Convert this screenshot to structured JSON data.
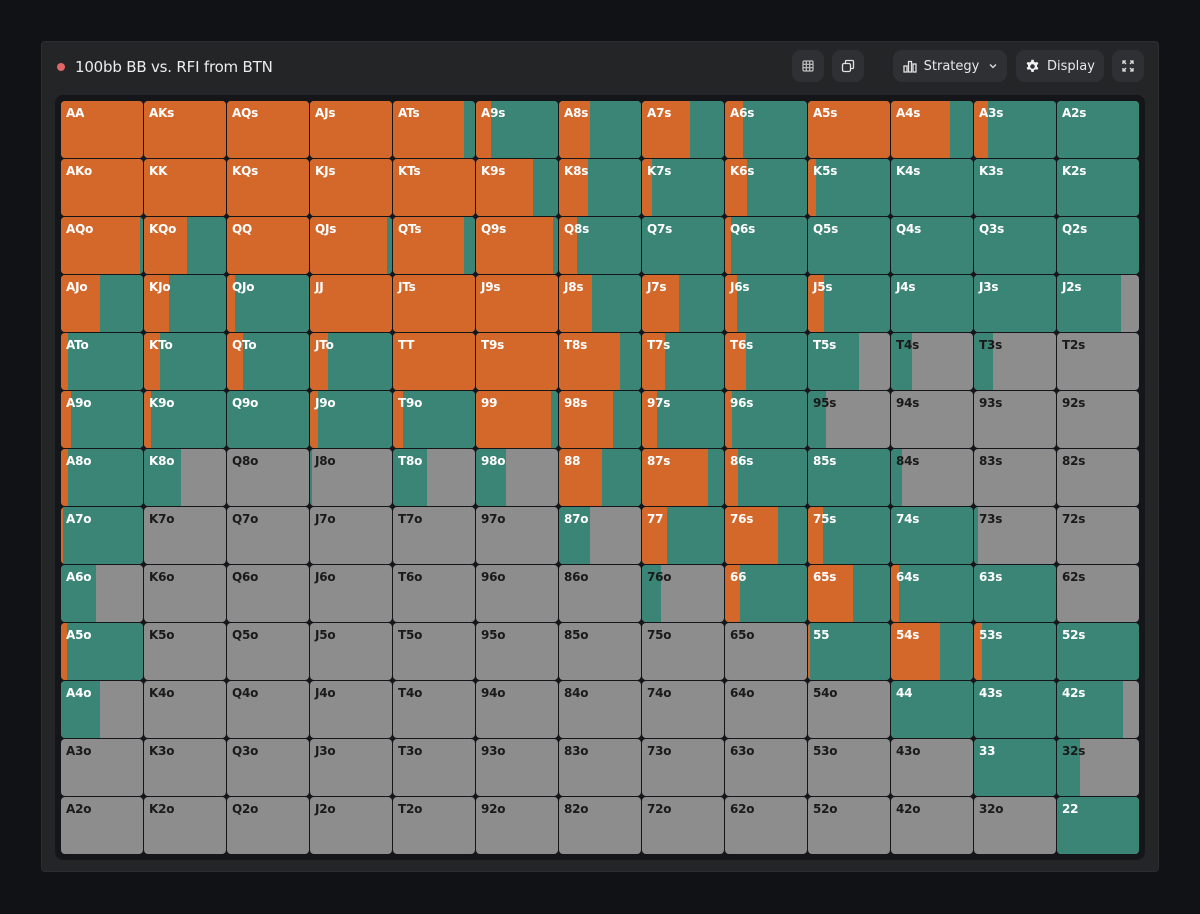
{
  "header": {
    "title": "100bb BB vs. RFI from BTN",
    "strategy_label": "Strategy",
    "display_label": "Display"
  },
  "icons": {
    "grid": "grid-icon",
    "copy": "copy-icon",
    "strategy": "bar-chart-icon",
    "chevron": "chevron-down-icon",
    "display": "gear-icon",
    "fullscreen": "expand-icon"
  },
  "colors": {
    "raise": "#d4682b",
    "call": "#3b8576",
    "fold": "#8d8d8d",
    "status": "#e06565"
  },
  "grid": {
    "rows": [
      [
        {
          "hand": "AA",
          "raise": 1,
          "call": 0
        },
        {
          "hand": "AKs",
          "raise": 1,
          "call": 0
        },
        {
          "hand": "AQs",
          "raise": 1,
          "call": 0
        },
        {
          "hand": "AJs",
          "raise": 1,
          "call": 0
        },
        {
          "hand": "ATs",
          "raise": 0.87,
          "call": 0.13
        },
        {
          "hand": "A9s",
          "raise": 0.18,
          "call": 0.82
        },
        {
          "hand": "A8s",
          "raise": 0.38,
          "call": 0.62
        },
        {
          "hand": "A7s",
          "raise": 0.58,
          "call": 0.42
        },
        {
          "hand": "A6s",
          "raise": 0.22,
          "call": 0.78
        },
        {
          "hand": "A5s",
          "raise": 1,
          "call": 0
        },
        {
          "hand": "A4s",
          "raise": 0.72,
          "call": 0.28
        },
        {
          "hand": "A3s",
          "raise": 0.17,
          "call": 0.83
        },
        {
          "hand": "A2s",
          "raise": 0,
          "call": 1
        }
      ],
      [
        {
          "hand": "AKo",
          "raise": 1,
          "call": 0
        },
        {
          "hand": "KK",
          "raise": 1,
          "call": 0
        },
        {
          "hand": "KQs",
          "raise": 1,
          "call": 0
        },
        {
          "hand": "KJs",
          "raise": 1,
          "call": 0
        },
        {
          "hand": "KTs",
          "raise": 1,
          "call": 0
        },
        {
          "hand": "K9s",
          "raise": 0.7,
          "call": 0.3
        },
        {
          "hand": "K8s",
          "raise": 0.35,
          "call": 0.65
        },
        {
          "hand": "K7s",
          "raise": 0.12,
          "call": 0.88
        },
        {
          "hand": "K6s",
          "raise": 0.27,
          "call": 0.73
        },
        {
          "hand": "K5s",
          "raise": 0.1,
          "call": 0.9
        },
        {
          "hand": "K4s",
          "raise": 0,
          "call": 1
        },
        {
          "hand": "K3s",
          "raise": 0,
          "call": 1
        },
        {
          "hand": "K2s",
          "raise": 0,
          "call": 1
        }
      ],
      [
        {
          "hand": "AQo",
          "raise": 0.96,
          "call": 0.04
        },
        {
          "hand": "KQo",
          "raise": 0.52,
          "call": 0.48
        },
        {
          "hand": "QQ",
          "raise": 1,
          "call": 0
        },
        {
          "hand": "QJs",
          "raise": 0.94,
          "call": 0.06
        },
        {
          "hand": "QTs",
          "raise": 0.87,
          "call": 0.13
        },
        {
          "hand": "Q9s",
          "raise": 0.94,
          "call": 0.06
        },
        {
          "hand": "Q8s",
          "raise": 0.22,
          "call": 0.78
        },
        {
          "hand": "Q7s",
          "raise": 0,
          "call": 1
        },
        {
          "hand": "Q6s",
          "raise": 0.07,
          "call": 0.93
        },
        {
          "hand": "Q5s",
          "raise": 0,
          "call": 1
        },
        {
          "hand": "Q4s",
          "raise": 0,
          "call": 1
        },
        {
          "hand": "Q3s",
          "raise": 0,
          "call": 1
        },
        {
          "hand": "Q2s",
          "raise": 0,
          "call": 1
        }
      ],
      [
        {
          "hand": "AJo",
          "raise": 0.48,
          "call": 0.52
        },
        {
          "hand": "KJo",
          "raise": 0.3,
          "call": 0.7
        },
        {
          "hand": "QJo",
          "raise": 0.1,
          "call": 0.9
        },
        {
          "hand": "JJ",
          "raise": 1,
          "call": 0
        },
        {
          "hand": "JTs",
          "raise": 1,
          "call": 0
        },
        {
          "hand": "J9s",
          "raise": 1,
          "call": 0
        },
        {
          "hand": "J8s",
          "raise": 0.4,
          "call": 0.6
        },
        {
          "hand": "J7s",
          "raise": 0.45,
          "call": 0.55
        },
        {
          "hand": "J6s",
          "raise": 0.15,
          "call": 0.85
        },
        {
          "hand": "J5s",
          "raise": 0.2,
          "call": 0.8
        },
        {
          "hand": "J4s",
          "raise": 0,
          "call": 1
        },
        {
          "hand": "J3s",
          "raise": 0,
          "call": 1
        },
        {
          "hand": "J2s",
          "raise": 0,
          "call": 0.78
        }
      ],
      [
        {
          "hand": "ATo",
          "raise": 0.08,
          "call": 0.92
        },
        {
          "hand": "KTo",
          "raise": 0.2,
          "call": 0.8
        },
        {
          "hand": "QTo",
          "raise": 0.2,
          "call": 0.8
        },
        {
          "hand": "JTo",
          "raise": 0.22,
          "call": 0.78
        },
        {
          "hand": "TT",
          "raise": 1,
          "call": 0
        },
        {
          "hand": "T9s",
          "raise": 1,
          "call": 0
        },
        {
          "hand": "T8s",
          "raise": 0.74,
          "call": 0.26
        },
        {
          "hand": "T7s",
          "raise": 0.28,
          "call": 0.72
        },
        {
          "hand": "T6s",
          "raise": 0.25,
          "call": 0.75
        },
        {
          "hand": "T5s",
          "raise": 0,
          "call": 0.62
        },
        {
          "hand": "T4s",
          "raise": 0,
          "call": 0.25
        },
        {
          "hand": "T3s",
          "raise": 0,
          "call": 0.23
        },
        {
          "hand": "T2s",
          "raise": 0,
          "call": 0
        }
      ],
      [
        {
          "hand": "A9o",
          "raise": 0.12,
          "call": 0.88
        },
        {
          "hand": "K9o",
          "raise": 0.08,
          "call": 0.92
        },
        {
          "hand": "Q9o",
          "raise": 0,
          "call": 1
        },
        {
          "hand": "J9o",
          "raise": 0.1,
          "call": 0.9
        },
        {
          "hand": "T9o",
          "raise": 0.12,
          "call": 0.88
        },
        {
          "hand": "99",
          "raise": 0.92,
          "call": 0.08
        },
        {
          "hand": "98s",
          "raise": 0.66,
          "call": 0.34
        },
        {
          "hand": "97s",
          "raise": 0.18,
          "call": 0.82
        },
        {
          "hand": "96s",
          "raise": 0.08,
          "call": 0.92
        },
        {
          "hand": "95s",
          "raise": 0,
          "call": 0.22
        },
        {
          "hand": "94s",
          "raise": 0,
          "call": 0
        },
        {
          "hand": "93s",
          "raise": 0,
          "call": 0
        },
        {
          "hand": "92s",
          "raise": 0,
          "call": 0
        }
      ],
      [
        {
          "hand": "A8o",
          "raise": 0.08,
          "call": 0.92
        },
        {
          "hand": "K8o",
          "raise": 0,
          "call": 0.45
        },
        {
          "hand": "Q8o",
          "raise": 0,
          "call": 0
        },
        {
          "hand": "J8o",
          "raise": 0,
          "call": 0.03
        },
        {
          "hand": "T8o",
          "raise": 0,
          "call": 0.42
        },
        {
          "hand": "98o",
          "raise": 0,
          "call": 0.37
        },
        {
          "hand": "88",
          "raise": 0.52,
          "call": 0.48
        },
        {
          "hand": "87s",
          "raise": 0.8,
          "call": 0.2
        },
        {
          "hand": "86s",
          "raise": 0.16,
          "call": 0.84
        },
        {
          "hand": "85s",
          "raise": 0,
          "call": 1
        },
        {
          "hand": "84s",
          "raise": 0,
          "call": 0.13
        },
        {
          "hand": "83s",
          "raise": 0,
          "call": 0
        },
        {
          "hand": "82s",
          "raise": 0,
          "call": 0
        }
      ],
      [
        {
          "hand": "A7o",
          "raise": 0.03,
          "call": 0.97
        },
        {
          "hand": "K7o",
          "raise": 0,
          "call": 0
        },
        {
          "hand": "Q7o",
          "raise": 0,
          "call": 0
        },
        {
          "hand": "J7o",
          "raise": 0,
          "call": 0
        },
        {
          "hand": "T7o",
          "raise": 0,
          "call": 0
        },
        {
          "hand": "97o",
          "raise": 0,
          "call": 0
        },
        {
          "hand": "87o",
          "raise": 0,
          "call": 0.38
        },
        {
          "hand": "77",
          "raise": 0.3,
          "call": 0.7
        },
        {
          "hand": "76s",
          "raise": 0.65,
          "call": 0.35
        },
        {
          "hand": "75s",
          "raise": 0.18,
          "call": 0.82
        },
        {
          "hand": "74s",
          "raise": 0,
          "call": 1
        },
        {
          "hand": "73s",
          "raise": 0,
          "call": 0.05
        },
        {
          "hand": "72s",
          "raise": 0,
          "call": 0
        }
      ],
      [
        {
          "hand": "A6o",
          "raise": 0,
          "call": 0.43
        },
        {
          "hand": "K6o",
          "raise": 0,
          "call": 0
        },
        {
          "hand": "Q6o",
          "raise": 0,
          "call": 0
        },
        {
          "hand": "J6o",
          "raise": 0,
          "call": 0
        },
        {
          "hand": "T6o",
          "raise": 0,
          "call": 0
        },
        {
          "hand": "96o",
          "raise": 0,
          "call": 0
        },
        {
          "hand": "86o",
          "raise": 0,
          "call": 0
        },
        {
          "hand": "76o",
          "raise": 0,
          "call": 0.23
        },
        {
          "hand": "66",
          "raise": 0.18,
          "call": 0.82
        },
        {
          "hand": "65s",
          "raise": 0.55,
          "call": 0.45
        },
        {
          "hand": "64s",
          "raise": 0.1,
          "call": 0.9
        },
        {
          "hand": "63s",
          "raise": 0,
          "call": 1
        },
        {
          "hand": "62s",
          "raise": 0,
          "call": 0
        }
      ],
      [
        {
          "hand": "A5o",
          "raise": 0.07,
          "call": 0.93
        },
        {
          "hand": "K5o",
          "raise": 0,
          "call": 0
        },
        {
          "hand": "Q5o",
          "raise": 0,
          "call": 0
        },
        {
          "hand": "J5o",
          "raise": 0,
          "call": 0
        },
        {
          "hand": "T5o",
          "raise": 0,
          "call": 0
        },
        {
          "hand": "95o",
          "raise": 0,
          "call": 0
        },
        {
          "hand": "85o",
          "raise": 0,
          "call": 0
        },
        {
          "hand": "75o",
          "raise": 0,
          "call": 0
        },
        {
          "hand": "65o",
          "raise": 0,
          "call": 0
        },
        {
          "hand": "55",
          "raise": 0.03,
          "call": 0.97
        },
        {
          "hand": "54s",
          "raise": 0.6,
          "call": 0.4
        },
        {
          "hand": "53s",
          "raise": 0.1,
          "call": 0.9
        },
        {
          "hand": "52s",
          "raise": 0,
          "call": 1
        }
      ],
      [
        {
          "hand": "A4o",
          "raise": 0,
          "call": 0.47
        },
        {
          "hand": "K4o",
          "raise": 0,
          "call": 0
        },
        {
          "hand": "Q4o",
          "raise": 0,
          "call": 0
        },
        {
          "hand": "J4o",
          "raise": 0,
          "call": 0
        },
        {
          "hand": "T4o",
          "raise": 0,
          "call": 0
        },
        {
          "hand": "94o",
          "raise": 0,
          "call": 0
        },
        {
          "hand": "84o",
          "raise": 0,
          "call": 0
        },
        {
          "hand": "74o",
          "raise": 0,
          "call": 0
        },
        {
          "hand": "64o",
          "raise": 0,
          "call": 0
        },
        {
          "hand": "54o",
          "raise": 0,
          "call": 0
        },
        {
          "hand": "44",
          "raise": 0,
          "call": 1
        },
        {
          "hand": "43s",
          "raise": 0,
          "call": 1
        },
        {
          "hand": "42s",
          "raise": 0,
          "call": 0.8
        }
      ],
      [
        {
          "hand": "A3o",
          "raise": 0,
          "call": 0
        },
        {
          "hand": "K3o",
          "raise": 0,
          "call": 0
        },
        {
          "hand": "Q3o",
          "raise": 0,
          "call": 0
        },
        {
          "hand": "J3o",
          "raise": 0,
          "call": 0
        },
        {
          "hand": "T3o",
          "raise": 0,
          "call": 0
        },
        {
          "hand": "93o",
          "raise": 0,
          "call": 0
        },
        {
          "hand": "83o",
          "raise": 0,
          "call": 0
        },
        {
          "hand": "73o",
          "raise": 0,
          "call": 0
        },
        {
          "hand": "63o",
          "raise": 0,
          "call": 0
        },
        {
          "hand": "53o",
          "raise": 0,
          "call": 0
        },
        {
          "hand": "43o",
          "raise": 0,
          "call": 0
        },
        {
          "hand": "33",
          "raise": 0,
          "call": 1
        },
        {
          "hand": "32s",
          "raise": 0,
          "call": 0.28
        }
      ],
      [
        {
          "hand": "A2o",
          "raise": 0,
          "call": 0
        },
        {
          "hand": "K2o",
          "raise": 0,
          "call": 0
        },
        {
          "hand": "Q2o",
          "raise": 0,
          "call": 0
        },
        {
          "hand": "J2o",
          "raise": 0,
          "call": 0
        },
        {
          "hand": "T2o",
          "raise": 0,
          "call": 0
        },
        {
          "hand": "92o",
          "raise": 0,
          "call": 0
        },
        {
          "hand": "82o",
          "raise": 0,
          "call": 0
        },
        {
          "hand": "72o",
          "raise": 0,
          "call": 0
        },
        {
          "hand": "62o",
          "raise": 0,
          "call": 0
        },
        {
          "hand": "52o",
          "raise": 0,
          "call": 0
        },
        {
          "hand": "42o",
          "raise": 0,
          "call": 0
        },
        {
          "hand": "32o",
          "raise": 0,
          "call": 0
        },
        {
          "hand": "22",
          "raise": 0,
          "call": 1
        }
      ]
    ]
  }
}
